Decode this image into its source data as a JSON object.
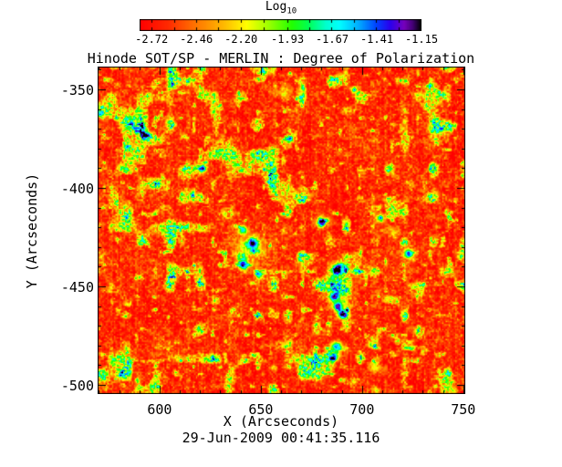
{
  "title": "Hinode SOT/SP - MERLIN : Degree of Polarization",
  "colorbar": {
    "title": "Log",
    "title_sub": "10",
    "tick_labels": [
      "-2.72",
      "-2.46",
      "-2.20",
      "-1.93",
      "-1.67",
      "-1.41",
      "-1.15"
    ],
    "tick_values": [
      -2.72,
      -2.46,
      -2.2,
      -1.93,
      -1.67,
      -1.41,
      -1.15
    ],
    "range": [
      -2.79,
      -1.15
    ]
  },
  "axes": {
    "x": {
      "label": "X (Arcseconds)",
      "tick_labels": [
        "600",
        "650",
        "700",
        "750"
      ],
      "tick_values": [
        600,
        650,
        700,
        750
      ]
    },
    "y": {
      "label": "Y (Arcseconds)",
      "tick_labels": [
        "-350",
        "-400",
        "-450",
        "-500"
      ],
      "tick_values": [
        -350,
        -400,
        -450,
        -500
      ]
    }
  },
  "footer": {
    "timestamp": "29-Jun-2009 00:41:35.116"
  },
  "chart_data": {
    "type": "heatmap",
    "title": "Hinode SOT/SP - MERLIN : Degree of Polarization",
    "xlabel": "X (Arcseconds)",
    "ylabel": "Y (Arcseconds)",
    "xlim": [
      569.4,
      751.0
    ],
    "ylim": [
      -504.6,
      -338.4
    ],
    "x_ticks": [
      600,
      650,
      700,
      750
    ],
    "y_ticks": [
      -350,
      -400,
      -450,
      -500
    ],
    "minor_tick_step": 10,
    "colorbar_label": "Log10",
    "colorbar_ticks": [
      -2.72,
      -2.46,
      -2.2,
      -1.93,
      -1.67,
      -1.41,
      -1.15
    ],
    "value_range": [
      -2.79,
      -1.15
    ],
    "description": "Log10 degree of polarization map: red/orange background near -2.6, speckled yellow-green magnetic network patches, and strong-polarization blue/violet cores in plage clusters.",
    "colormap_stops": [
      [
        0.0,
        "#ff0000"
      ],
      [
        0.1,
        "#ff2a00"
      ],
      [
        0.2,
        "#ff7700"
      ],
      [
        0.3,
        "#ffbb00"
      ],
      [
        0.38,
        "#ffff00"
      ],
      [
        0.46,
        "#99ff00"
      ],
      [
        0.54,
        "#22ff00"
      ],
      [
        0.6,
        "#00ff55"
      ],
      [
        0.66,
        "#00ffcc"
      ],
      [
        0.71,
        "#00ffff"
      ],
      [
        0.78,
        "#00aaff"
      ],
      [
        0.84,
        "#0044ff"
      ],
      [
        0.89,
        "#2a00ee"
      ],
      [
        0.94,
        "#7700bb"
      ],
      [
        0.97,
        "#440077"
      ],
      [
        1.0,
        "#000000"
      ]
    ],
    "background_level": -2.635,
    "noise": {
      "seed": 7,
      "fine": 0.34,
      "medium": 0.2,
      "stripe": 0.14,
      "large": 0.08,
      "cluster_threshold": 0.66,
      "cluster_gain": 2.6,
      "dot_threshold": 0.72,
      "dot_gain": 1.8
    },
    "features": [
      {
        "x": 593,
        "y": -373,
        "r": 1.8,
        "amp": 0.85
      },
      {
        "x": 621,
        "y": -390,
        "r": 1.8,
        "amp": 0.8
      },
      {
        "x": 696,
        "y": -350,
        "r": 1.3,
        "amp": 0.65
      },
      {
        "x": 641,
        "y": -421,
        "r": 2.2,
        "amp": 1.0
      },
      {
        "x": 646,
        "y": -428,
        "r": 2.8,
        "amp": 1.15
      },
      {
        "x": 641,
        "y": -439,
        "r": 2.4,
        "amp": 1.05
      },
      {
        "x": 649,
        "y": -444,
        "r": 2.0,
        "amp": 0.9
      },
      {
        "x": 680,
        "y": -417,
        "r": 2.0,
        "amp": 0.95
      },
      {
        "x": 688,
        "y": -441,
        "r": 2.4,
        "amp": 1.05
      },
      {
        "x": 697,
        "y": -442,
        "r": 1.8,
        "amp": 0.85
      },
      {
        "x": 686,
        "y": -455,
        "r": 2.2,
        "amp": 1.1
      },
      {
        "x": 688,
        "y": -460,
        "r": 2.6,
        "amp": 1.3
      },
      {
        "x": 690,
        "y": -464,
        "r": 2.2,
        "amp": 1.1
      },
      {
        "x": 687,
        "y": -480,
        "r": 2.2,
        "amp": 1.1
      },
      {
        "x": 686,
        "y": -486,
        "r": 2.0,
        "amp": 0.95
      },
      {
        "x": 709,
        "y": -415,
        "r": 1.5,
        "amp": 0.7
      },
      {
        "x": 723,
        "y": -433,
        "r": 2.0,
        "amp": 0.9
      }
    ],
    "halos": [
      {
        "x": 644,
        "y": -431,
        "r": 8.0,
        "amp": 0.5
      },
      {
        "x": 688,
        "y": -452,
        "r": 6.0,
        "amp": 0.5
      },
      {
        "x": 688,
        "y": -441,
        "r": 4.5,
        "amp": 0.45
      },
      {
        "x": 687,
        "y": -483,
        "r": 4.0,
        "amp": 0.45
      },
      {
        "x": 723,
        "y": -433,
        "r": 4.0,
        "amp": 0.4
      },
      {
        "x": 680,
        "y": -417,
        "r": 3.5,
        "amp": 0.4
      },
      {
        "x": 709,
        "y": -415,
        "r": 3.0,
        "amp": 0.35
      },
      {
        "x": 593,
        "y": -373,
        "r": 3.0,
        "amp": 0.35
      },
      {
        "x": 621,
        "y": -390,
        "r": 3.5,
        "amp": 0.4
      },
      {
        "x": 661,
        "y": -351,
        "r": 3.5,
        "amp": 0.4
      },
      {
        "x": 706,
        "y": -490,
        "r": 3.0,
        "amp": 0.45
      },
      {
        "x": 715,
        "y": -422,
        "r": 3.0,
        "amp": 0.35
      },
      {
        "x": 696,
        "y": -350,
        "r": 2.5,
        "amp": 0.35
      }
    ]
  }
}
